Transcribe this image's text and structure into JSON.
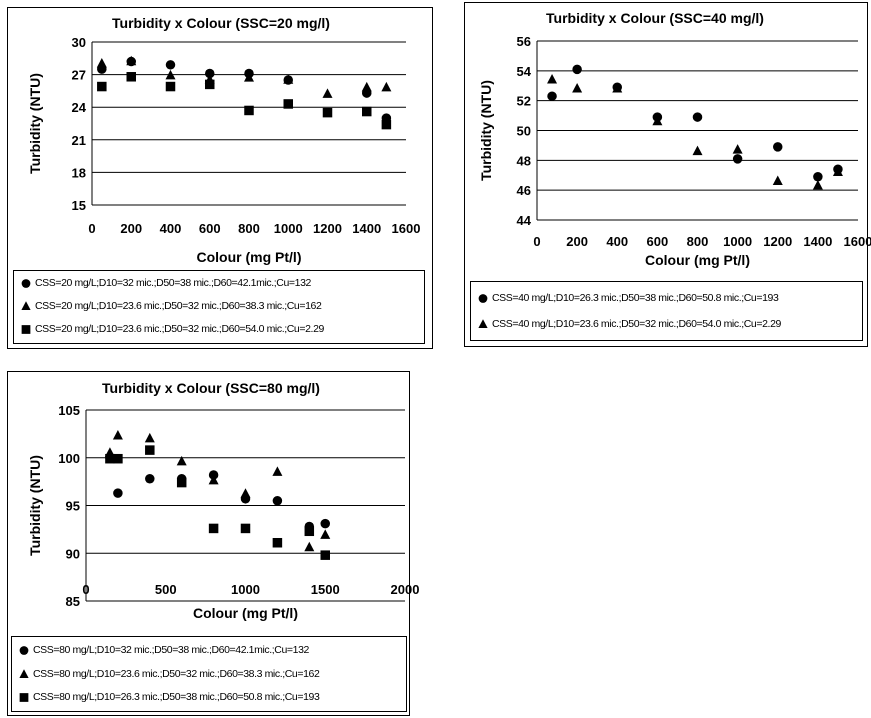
{
  "chart_data": [
    {
      "type": "scatter",
      "title": "Turbidity x Colour (SSC=20 mg/l)",
      "xlabel": "Colour (mg Pt/l)",
      "ylabel": "Turbidity (NTU)",
      "xlim": [
        0,
        1600
      ],
      "ylim": [
        15,
        30
      ],
      "xticks": [
        "0",
        "200",
        "400",
        "600",
        "800",
        "1000",
        "1200",
        "1400",
        "1600"
      ],
      "yticks": [
        "15",
        "18",
        "21",
        "24",
        "27",
        "30"
      ],
      "grid": "horizontal",
      "legend_position": "bottom",
      "series": [
        {
          "name": "CSS=20 mg/L;D10=32 mic.;D50=38 mic.;D60=42.1mic.;Cu=132",
          "marker": "circle",
          "x": [
            50,
            200,
            400,
            600,
            800,
            1000,
            1400,
            1500
          ],
          "y": [
            27.5,
            28.2,
            27.9,
            27.1,
            27.1,
            26.5,
            25.3,
            23.0
          ]
        },
        {
          "name": "CSS=20 mg/L;D10=23.6 mic.;D50=32 mic.;D60=38.3 mic.;Cu=162",
          "marker": "triangle",
          "x": [
            50,
            200,
            400,
            600,
            800,
            1000,
            1200,
            1400,
            1500
          ],
          "y": [
            28.0,
            28.2,
            26.9,
            26.5,
            26.7,
            26.5,
            25.2,
            25.8,
            25.8
          ]
        },
        {
          "name": "CSS=20 mg/L;D10=23.6 mic.;D50=32 mic.;D60=54.0 mic.;Cu=2.29",
          "marker": "square",
          "x": [
            50,
            200,
            400,
            600,
            800,
            1000,
            1200,
            1400,
            1500
          ],
          "y": [
            25.9,
            26.8,
            25.9,
            26.1,
            23.7,
            24.3,
            23.5,
            23.6,
            22.4
          ]
        }
      ]
    },
    {
      "type": "scatter",
      "title": "Turbidity x Colour (SSC=40 mg/l)",
      "xlabel": "Colour (mg Pt/l)",
      "ylabel": "Turbidity (NTU)",
      "xlim": [
        0,
        1600
      ],
      "ylim": [
        44,
        56
      ],
      "xticks": [
        "0",
        "200",
        "400",
        "600",
        "800",
        "1000",
        "1200",
        "1400",
        "1600"
      ],
      "yticks": [
        "44",
        "46",
        "48",
        "50",
        "52",
        "54",
        "56"
      ],
      "grid": "horizontal",
      "legend_position": "bottom",
      "series": [
        {
          "name": "CSS=40 mg/L;D10=26.3 mic.;D50=38 mic.;D60=50.8 mic.;Cu=193",
          "marker": "circle",
          "x": [
            75,
            200,
            400,
            600,
            800,
            1000,
            1200,
            1400,
            1500
          ],
          "y": [
            52.3,
            54.1,
            52.9,
            50.9,
            50.9,
            48.1,
            48.9,
            46.9,
            47.4
          ]
        },
        {
          "name": "CSS=40 mg/L;D10=23.6 mic.;D50=32 mic.;D60=54.0 mic.;Cu=2.29",
          "marker": "triangle",
          "x": [
            75,
            200,
            400,
            600,
            800,
            1000,
            1200,
            1400,
            1500
          ],
          "y": [
            53.4,
            52.8,
            52.8,
            50.6,
            48.6,
            48.7,
            46.6,
            46.3,
            47.2
          ]
        }
      ]
    },
    {
      "type": "scatter",
      "title": "Turbidity x Colour (SSC=80 mg/l)",
      "xlabel": "Colour (mg Pt/l)",
      "ylabel": "Turbidity (NTU)",
      "xlim": [
        0,
        2000
      ],
      "ylim": [
        85,
        105
      ],
      "xticks": [
        "0",
        "500",
        "1000",
        "1500",
        "2000"
      ],
      "yticks": [
        "85",
        "90",
        "95",
        "100",
        "105"
      ],
      "grid": "horizontal",
      "legend_position": "bottom",
      "series": [
        {
          "name": "CSS=80 mg/L;D10=32 mic.;D50=38 mic.;D60=42.1mic.;Cu=132",
          "marker": "circle",
          "x": [
            150,
            200,
            400,
            600,
            800,
            1000,
            1200,
            1400,
            1500
          ],
          "y": [
            100.0,
            96.3,
            97.8,
            97.8,
            98.2,
            95.7,
            95.5,
            92.8,
            93.1
          ]
        },
        {
          "name": "CSS=80 mg/L;D10=23.6 mic.;D50=32 mic.;D60=38.3 mic.;Cu=162",
          "marker": "triangle",
          "x": [
            150,
            200,
            400,
            600,
            800,
            1000,
            1200,
            1400,
            1500
          ],
          "y": [
            100.5,
            102.3,
            102.0,
            99.6,
            97.6,
            96.2,
            98.5,
            90.6,
            91.9
          ]
        },
        {
          "name": "CSS=80 mg/L;D10=26.3 mic.;D50=38 mic.;D60=50.8 mic.;Cu=193",
          "marker": "square",
          "x": [
            150,
            200,
            400,
            600,
            800,
            1000,
            1200,
            1400,
            1500
          ],
          "y": [
            99.9,
            99.9,
            100.8,
            97.4,
            92.6,
            92.6,
            91.1,
            92.3,
            89.8
          ]
        }
      ]
    }
  ]
}
